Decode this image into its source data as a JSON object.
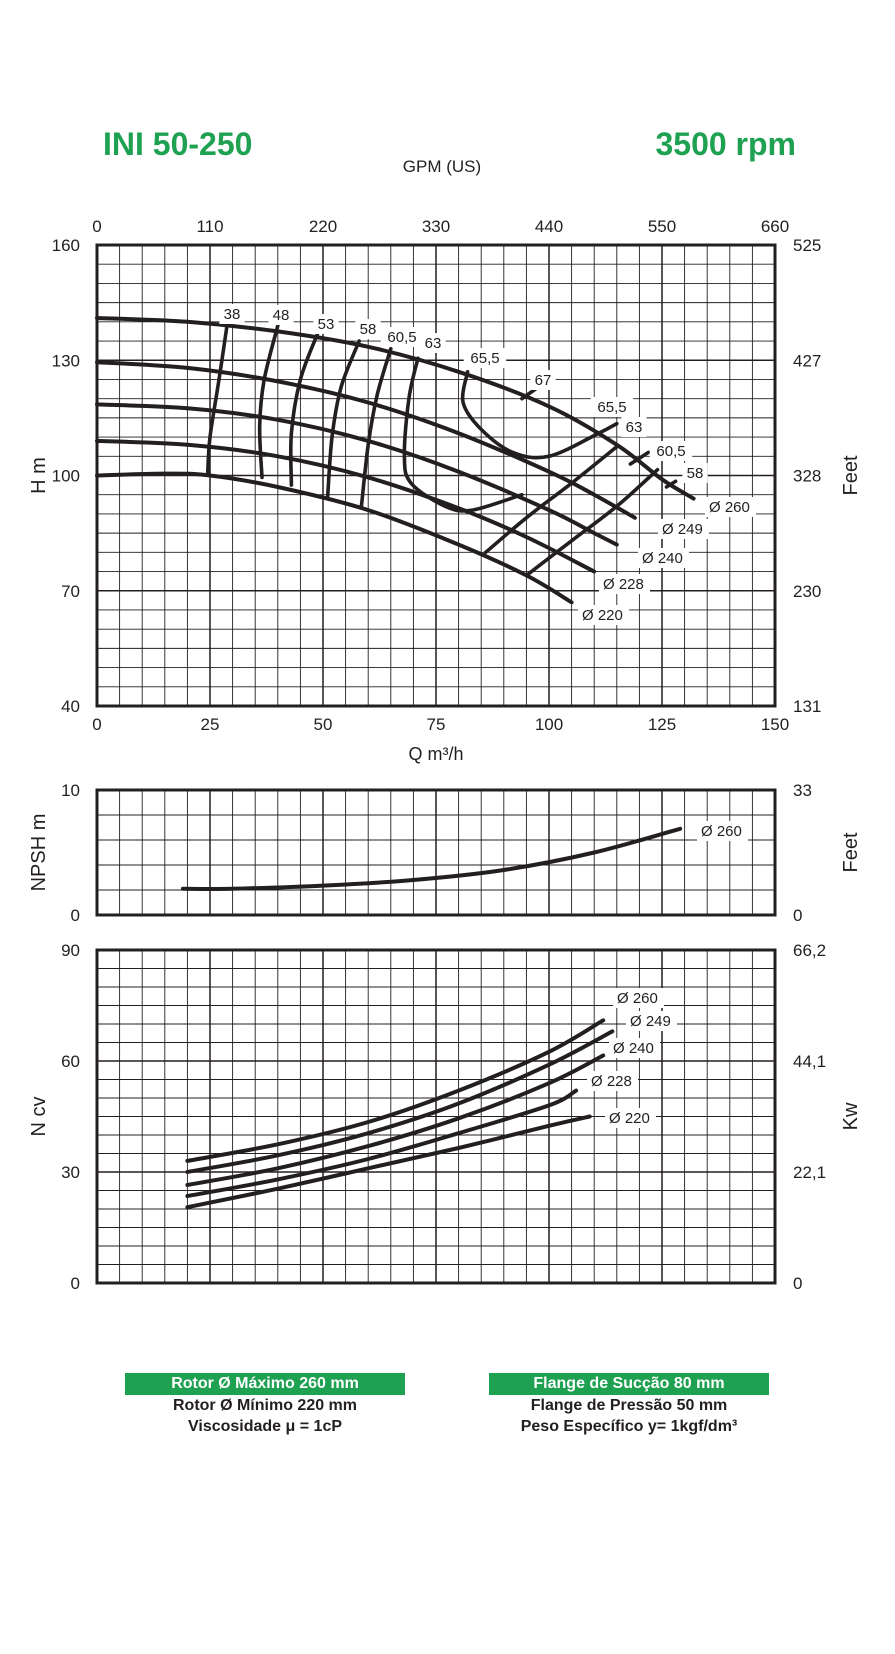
{
  "header": {
    "model": "INI 50-250",
    "speed": "3500 rpm"
  },
  "colors": {
    "brand_green": "#1fa152",
    "ink": "#231f20"
  },
  "footer": {
    "left": {
      "highlight": "Rotor Ø Máximo 260 mm",
      "line2": "Rotor Ø Mínimo 220 mm",
      "line3": "Viscosidade μ = 1cP"
    },
    "right": {
      "highlight": "Flange de Sucção 80 mm",
      "line2": "Flange de Pressão 50 mm",
      "line3": "Peso Específico y= 1kgf/dm³"
    }
  },
  "chart_data": [
    {
      "type": "line",
      "name": "head",
      "xlabel": "Q m³/h",
      "ylabel": "H m",
      "ylabel_right": "Feet",
      "xlabel_top": "GPM (US)",
      "xlim": [
        0,
        150
      ],
      "ylim": [
        40,
        160
      ],
      "x_ticks": [
        "0",
        "25",
        "50",
        "75",
        "100",
        "125",
        "150"
      ],
      "y_ticks": [
        "40",
        "70",
        "100",
        "130",
        "160"
      ],
      "top_ticks": [
        "0",
        "110",
        "220",
        "330",
        "440",
        "550",
        "660"
      ],
      "right_ticks": [
        "131",
        "230",
        "328",
        "427",
        "525"
      ],
      "grid": true,
      "series": [
        {
          "name": "Ø 260",
          "points": [
            [
              0,
              141
            ],
            [
              20,
              140
            ],
            [
              40,
              137.5
            ],
            [
              60,
              133.5
            ],
            [
              80,
              127
            ],
            [
              100,
              118
            ],
            [
              115,
              108
            ],
            [
              125,
              99
            ],
            [
              132,
              94
            ]
          ]
        },
        {
          "name": "Ø 249",
          "points": [
            [
              0,
              129.5
            ],
            [
              20,
              128
            ],
            [
              40,
              124.5
            ],
            [
              60,
              119
            ],
            [
              80,
              111
            ],
            [
              100,
              101
            ],
            [
              110,
              95
            ],
            [
              119,
              89
            ]
          ]
        },
        {
          "name": "Ø 240",
          "points": [
            [
              0,
              118.5
            ],
            [
              20,
              117.5
            ],
            [
              40,
              114.5
            ],
            [
              60,
              109
            ],
            [
              80,
              101
            ],
            [
              100,
              91
            ],
            [
              110,
              85
            ],
            [
              115,
              82
            ]
          ]
        },
        {
          "name": "Ø 228",
          "points": [
            [
              0,
              109
            ],
            [
              20,
              108
            ],
            [
              40,
              105
            ],
            [
              60,
              99.5
            ],
            [
              80,
              91.5
            ],
            [
              95,
              84
            ],
            [
              110,
              75
            ]
          ]
        },
        {
          "name": "Ø 220",
          "points": [
            [
              0,
              100
            ],
            [
              15,
              100.5
            ],
            [
              25,
              100
            ],
            [
              40,
              97
            ],
            [
              60,
              91
            ],
            [
              80,
              82
            ],
            [
              95,
              74
            ],
            [
              105,
              67
            ]
          ]
        }
      ],
      "efficiency_labels": [
        "38",
        "48",
        "53",
        "58",
        "60,5",
        "63",
        "65,5",
        "67",
        "65,5",
        "63",
        "60,5",
        "58"
      ],
      "efficiency_curves": [
        {
          "label": "38",
          "points": [
            [
              29,
              141
            ],
            [
              27,
              125
            ],
            [
              25,
              110
            ],
            [
              24.5,
              100.5
            ]
          ]
        },
        {
          "label": "48",
          "points": [
            [
              40,
              139
            ],
            [
              37,
              125
            ],
            [
              36,
              113
            ],
            [
              36.5,
              99.5
            ]
          ]
        },
        {
          "name": "53",
          "label": "53",
          "points": [
            [
              49,
              137.5
            ],
            [
              45,
              125
            ],
            [
              43,
              111
            ],
            [
              43,
              97.5
            ]
          ]
        },
        {
          "label": "58",
          "points": [
            [
              58,
              135
            ],
            [
              54,
              123
            ],
            [
              52,
              110
            ],
            [
              51,
              94
            ]
          ]
        },
        {
          "label": "60,5",
          "points": [
            [
              65,
              133
            ],
            [
              62,
              121
            ],
            [
              60,
              108
            ],
            [
              58.5,
              92
            ]
          ]
        },
        {
          "label": "63",
          "points": [
            [
              71,
              130.5
            ],
            [
              69,
              120
            ],
            [
              68,
              105
            ],
            [
              69.5,
              98
            ],
            [
              77,
              92
            ],
            [
              83,
              91
            ],
            [
              94,
              95
            ]
          ]
        },
        {
          "label": "65,5",
          "points": [
            [
              82,
              127
            ],
            [
              81,
              119
            ],
            [
              85,
              112
            ],
            [
              92,
              106
            ],
            [
              100,
              105
            ],
            [
              111,
              111
            ],
            [
              115,
              113.5
            ]
          ]
        },
        {
          "label": "67",
          "points": [
            [
              94,
              120
            ],
            [
              97,
              122.5
            ]
          ]
        },
        {
          "label": "65,5",
          "points": [
            [
              86,
              80
            ],
            [
              95,
              89
            ],
            [
              105,
              98
            ],
            [
              115,
              107.5
            ]
          ]
        },
        {
          "label": "63",
          "points": [
            [
              95,
              74
            ],
            [
              105,
              83
            ],
            [
              115,
              92
            ],
            [
              124,
              101.5
            ]
          ]
        },
        {
          "label": "60,5",
          "points": [
            [
              122,
              106
            ],
            [
              118,
              103
            ]
          ]
        },
        {
          "label": "58",
          "points": [
            [
              128,
              98.5
            ],
            [
              126,
              97
            ]
          ]
        }
      ],
      "series_labels": [
        "Ø 260",
        "Ø 249",
        "Ø 240",
        "Ø 228",
        "Ø 220"
      ]
    },
    {
      "type": "line",
      "name": "npsh",
      "ylabel": "NPSH m",
      "ylabel_right": "Feet",
      "xlim": [
        0,
        150
      ],
      "ylim": [
        0,
        10
      ],
      "y_ticks": [
        "0",
        "10"
      ],
      "right_ticks": [
        "0",
        "33"
      ],
      "grid": true,
      "series": [
        {
          "name": "Ø 260",
          "points": [
            [
              19,
              2.1
            ],
            [
              30,
              2.1
            ],
            [
              50,
              2.35
            ],
            [
              70,
              2.8
            ],
            [
              90,
              3.6
            ],
            [
              110,
              5.0
            ],
            [
              129,
              6.9
            ]
          ]
        }
      ]
    },
    {
      "type": "line",
      "name": "power",
      "ylabel": "N cv",
      "ylabel_right": "Kw",
      "xlim": [
        0,
        150
      ],
      "ylim": [
        0,
        90
      ],
      "y_ticks": [
        "0",
        "30",
        "60",
        "90"
      ],
      "right_ticks": [
        "0",
        "22,1",
        "44,1",
        "66,2"
      ],
      "grid": true,
      "series": [
        {
          "name": "Ø 260",
          "points": [
            [
              20,
              33
            ],
            [
              40,
              37.5
            ],
            [
              60,
              43.5
            ],
            [
              80,
              52
            ],
            [
              100,
              62.5
            ],
            [
              112,
              71
            ]
          ]
        },
        {
          "name": "Ø 249",
          "points": [
            [
              20,
              30
            ],
            [
              40,
              34.5
            ],
            [
              60,
              40.5
            ],
            [
              80,
              48.5
            ],
            [
              100,
              59
            ],
            [
              114,
              68
            ]
          ]
        },
        {
          "name": "Ø 240",
          "points": [
            [
              20,
              26.5
            ],
            [
              40,
              31
            ],
            [
              60,
              37
            ],
            [
              80,
              44.5
            ],
            [
              100,
              54
            ],
            [
              112,
              61.5
            ]
          ]
        },
        {
          "name": "Ø 228",
          "points": [
            [
              20,
              23.5
            ],
            [
              40,
              28
            ],
            [
              60,
              33.5
            ],
            [
              80,
              40.5
            ],
            [
              100,
              48
            ],
            [
              106,
              52
            ]
          ]
        },
        {
          "name": "Ø 220",
          "points": [
            [
              20,
              20.5
            ],
            [
              40,
              25.5
            ],
            [
              60,
              31
            ],
            [
              80,
              36.5
            ],
            [
              100,
              42.5
            ],
            [
              109,
              45
            ]
          ]
        }
      ]
    }
  ]
}
